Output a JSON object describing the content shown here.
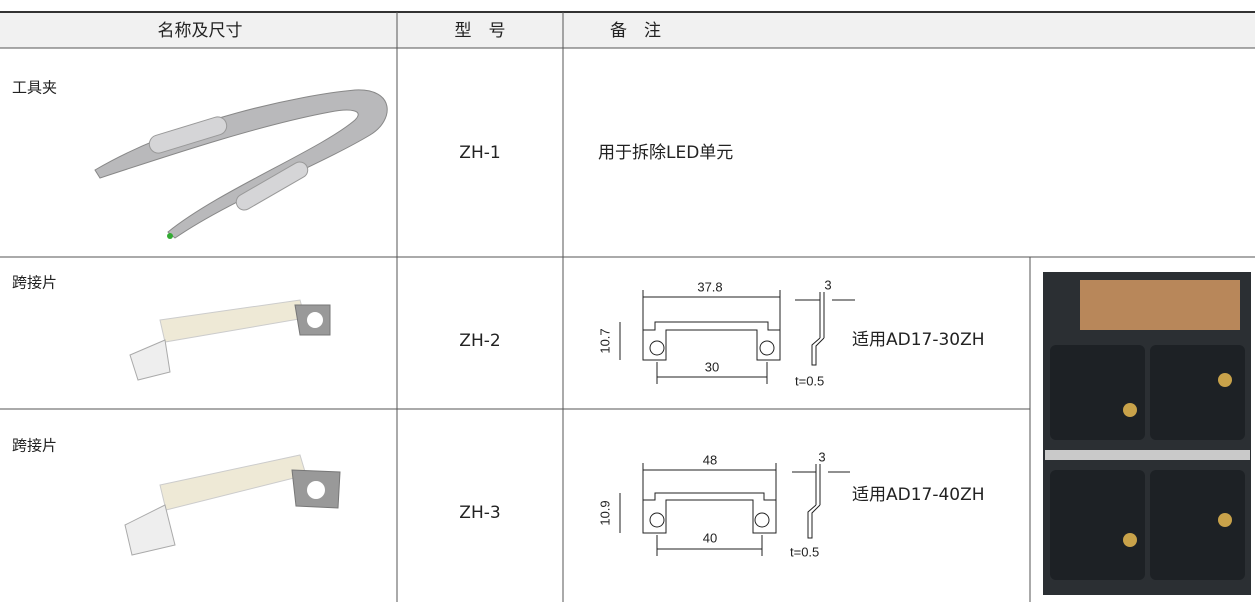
{
  "table": {
    "headers": [
      "名称及尺寸",
      "型　号",
      "备　注"
    ],
    "rows": [
      {
        "name": "工具夹",
        "model": "ZH-1",
        "note": "用于拆除LED单元"
      },
      {
        "name": "跨接片",
        "model": "ZH-2",
        "drawing": {
          "length": "37.8",
          "thickness": "3",
          "height": "10.7",
          "pitch": "30",
          "t": "t=0.5"
        },
        "note": "适用AD17-30ZH"
      },
      {
        "name": "跨接片",
        "model": "ZH-3",
        "drawing": {
          "length": "48",
          "thickness": "3",
          "height": "10.9",
          "pitch": "40",
          "t": "t=0.5"
        },
        "note": "适用AD17-40ZH"
      }
    ]
  }
}
